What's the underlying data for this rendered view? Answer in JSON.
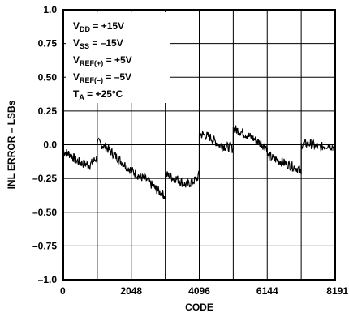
{
  "chart_data": {
    "type": "line",
    "xlabel": "CODE",
    "ylabel": "INL ERROR – LSBs",
    "xlim": [
      0,
      8191
    ],
    "ylim": [
      -1.0,
      1.0
    ],
    "grid": true,
    "x_ticks": [
      0,
      2048,
      4096,
      6144,
      8191
    ],
    "x_tick_labels": [
      "0",
      "2048",
      "4096",
      "6144",
      "8191"
    ],
    "y_ticks": [
      1.0,
      0.75,
      0.5,
      0.25,
      0.0,
      -0.25,
      -0.5,
      -0.75,
      -1.0
    ],
    "y_tick_labels": [
      "1.0",
      "0.75",
      "0.50",
      "0.25",
      "0.0",
      "–0.25",
      "–0.50",
      "–0.75",
      "–1.0"
    ],
    "annotations": [
      {
        "main": "V",
        "sub": "DD",
        "rest": " = +15V"
      },
      {
        "main": "V",
        "sub": "SS",
        "rest": " = –15V"
      },
      {
        "main": "V",
        "sub": "REF(+)",
        "rest": " = +5V"
      },
      {
        "main": "V",
        "sub": "REF(–)",
        "rest": " = –5V"
      },
      {
        "main": "T",
        "sub": "A",
        "rest": " = +25°C"
      }
    ],
    "series": [
      {
        "x": [
          0,
          200,
          400,
          600,
          800,
          1000,
          1023,
          1024,
          1300,
          1600,
          1900,
          2200,
          2500,
          2800,
          3071,
          3072,
          3400,
          3700,
          4000,
          4095,
          4096,
          4400,
          4700,
          5000,
          5119,
          5120,
          5400,
          5700,
          6000,
          6143,
          6144,
          6500,
          6800,
          7100,
          7167,
          7168,
          7400,
          7700,
          8000,
          8191
        ],
        "y": [
          -0.05,
          -0.07,
          -0.12,
          -0.14,
          -0.15,
          -0.1,
          -0.12,
          0.02,
          -0.02,
          -0.09,
          -0.16,
          -0.22,
          -0.26,
          -0.33,
          -0.38,
          -0.22,
          -0.25,
          -0.3,
          -0.26,
          -0.22,
          0.08,
          0.06,
          0.0,
          -0.02,
          -0.03,
          0.12,
          0.09,
          0.05,
          0.0,
          -0.02,
          -0.08,
          -0.12,
          -0.15,
          -0.18,
          -0.22,
          0.0,
          0.01,
          -0.02,
          0.0,
          -0.02
        ]
      }
    ]
  }
}
